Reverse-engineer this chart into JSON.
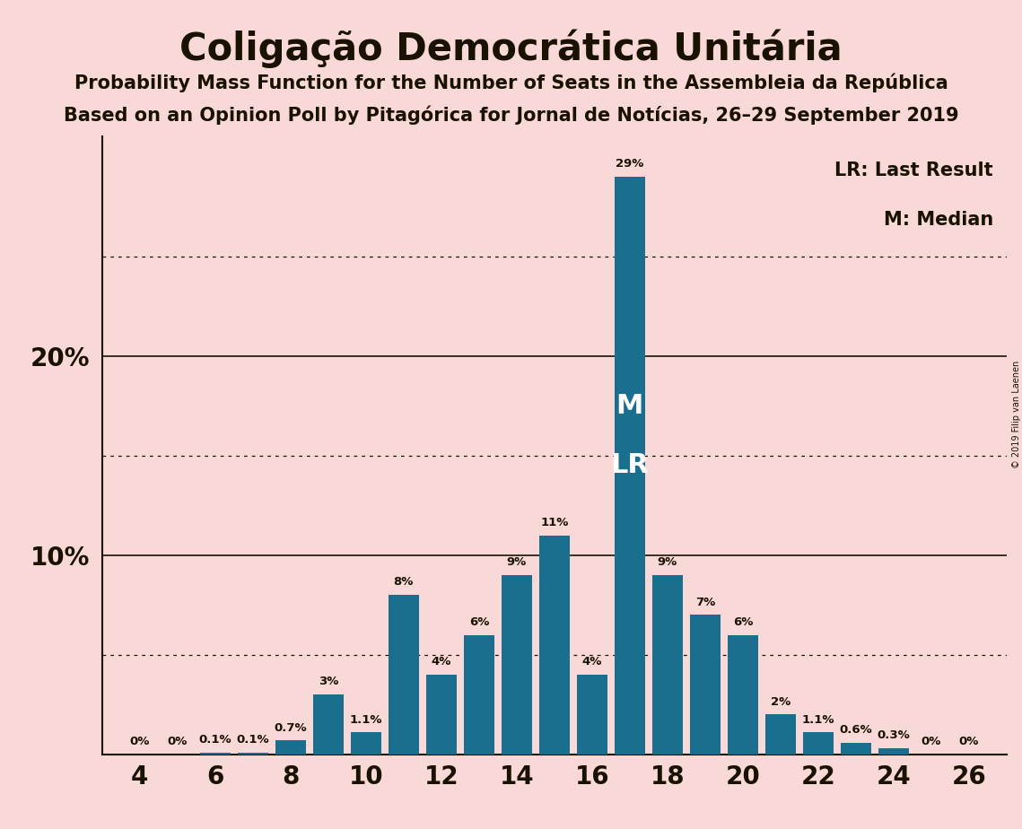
{
  "title": "Coligação Democrática Unitária",
  "subtitle1": "Probability Mass Function for the Number of Seats in the Assembleia da República",
  "subtitle2": "Based on an Opinion Poll by Pitagórica for Jornal de Notícias, 26–29 September 2019",
  "copyright": "© 2019 Filip van Laenen",
  "legend_lr": "LR: Last Result",
  "legend_m": "M: Median",
  "bar_color": "#1a6e8e",
  "bg_color": "#f9d8d8",
  "text_color": "#1a1200",
  "seats": [
    4,
    5,
    6,
    7,
    8,
    9,
    10,
    11,
    12,
    13,
    14,
    15,
    16,
    17,
    18,
    19,
    20,
    21,
    22,
    23,
    24,
    25,
    26
  ],
  "probs": [
    0.0,
    0.0,
    0.1,
    0.1,
    0.7,
    3.0,
    1.1,
    8.0,
    4.0,
    6.0,
    9.0,
    11.0,
    4.0,
    29.0,
    9.0,
    7.0,
    6.0,
    2.0,
    1.1,
    0.6,
    0.3,
    0.0,
    0.0
  ],
  "prob_labels": [
    "0%",
    "0%",
    "0.1%",
    "0.1%",
    "0.7%",
    "3%",
    "1.1%",
    "8%",
    "4%",
    "6%",
    "9%",
    "11%",
    "4%",
    "29%",
    "9%",
    "7%",
    "6%",
    "2%",
    "1.1%",
    "0.6%",
    "0.3%",
    "0%",
    "0%"
  ],
  "median_seat": 17,
  "lr_seat": 17,
  "ylim": [
    0,
    31
  ],
  "solid_gridlines": [
    10,
    20
  ],
  "dotted_gridlines": [
    5,
    15,
    25
  ],
  "xtick_seats": [
    4,
    6,
    8,
    10,
    12,
    14,
    16,
    18,
    20,
    22,
    24,
    26
  ],
  "ytick_positions": [
    10,
    20
  ],
  "ytick_labels": [
    "10%",
    "20%"
  ],
  "bar_width": 0.82,
  "label_fontsize": 9.5,
  "tick_fontsize": 20,
  "title_fontsize": 30,
  "subtitle_fontsize": 15,
  "legend_fontsize": 15,
  "ml_fontsize": 22
}
